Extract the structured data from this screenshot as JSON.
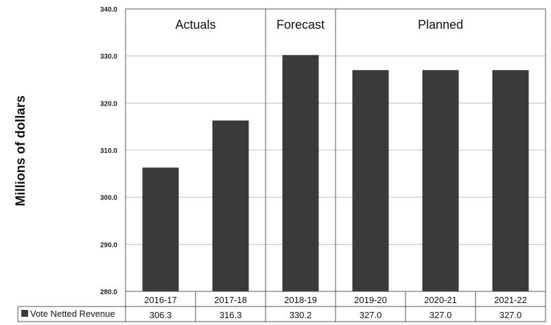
{
  "chart_data": {
    "type": "bar",
    "ylabel": "Millions of dollars",
    "ylim": [
      280,
      340
    ],
    "yticks": [
      "280.0",
      "290.0",
      "300.0",
      "310.0",
      "320.0",
      "330.0",
      "340.0"
    ],
    "categories": [
      "2016-17",
      "2017-18",
      "2018-19",
      "2019-20",
      "2020-21",
      "2021-22"
    ],
    "series": [
      {
        "name": "Vote Netted Revenue",
        "values": [
          306.3,
          316.3,
          330.2,
          327.0,
          327.0,
          327.0
        ],
        "labels": [
          "306.3",
          "316.3",
          "330.2",
          "327.0",
          "327.0",
          "327.0"
        ],
        "color": "#3a3a3a"
      }
    ],
    "sections": [
      {
        "label": "Actuals",
        "categories": [
          0,
          1
        ]
      },
      {
        "label": "Forecast",
        "categories": [
          2
        ]
      },
      {
        "label": "Planned",
        "categories": [
          3,
          4,
          5
        ]
      }
    ],
    "grid": true,
    "legend": "data-table"
  }
}
